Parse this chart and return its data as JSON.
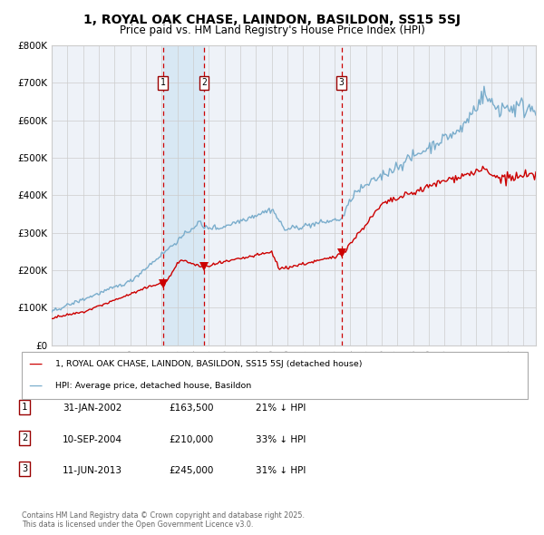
{
  "title": "1, ROYAL OAK CHASE, LAINDON, BASILDON, SS15 5SJ",
  "subtitle": "Price paid vs. HM Land Registry's House Price Index (HPI)",
  "legend_label_red": "1, ROYAL OAK CHASE, LAINDON, BASILDON, SS15 5SJ (detached house)",
  "legend_label_blue": "HPI: Average price, detached house, Basildon",
  "footer": "Contains HM Land Registry data © Crown copyright and database right 2025.\nThis data is licensed under the Open Government Licence v3.0.",
  "transactions": [
    {
      "num": 1,
      "date": "31-JAN-2002",
      "year": 2002.08,
      "price": 163500,
      "pct": "21%",
      "dir": "↓"
    },
    {
      "num": 2,
      "date": "10-SEP-2004",
      "year": 2004.69,
      "price": 210000,
      "pct": "33%",
      "dir": "↓"
    },
    {
      "num": 3,
      "date": "11-JUN-2013",
      "year": 2013.44,
      "price": 245000,
      "pct": "31%",
      "dir": "↓"
    }
  ],
  "ylim": [
    0,
    800000
  ],
  "yticks": [
    0,
    100000,
    200000,
    300000,
    400000,
    500000,
    600000,
    700000,
    800000
  ],
  "ytick_labels": [
    "£0",
    "£100K",
    "£200K",
    "£300K",
    "£400K",
    "£500K",
    "£600K",
    "£700K",
    "£800K"
  ],
  "xlim_start": 1995.0,
  "xlim_end": 2025.8,
  "bg_color": "#eef2f8",
  "plot_bg": "#ffffff",
  "red_color": "#cc0000",
  "blue_color": "#7aadcc",
  "transaction_shade_color": "#d8e8f4",
  "dashed_line_color": "#cc0000",
  "grid_color": "#cccccc",
  "title_fontsize": 10,
  "subtitle_fontsize": 8.5
}
